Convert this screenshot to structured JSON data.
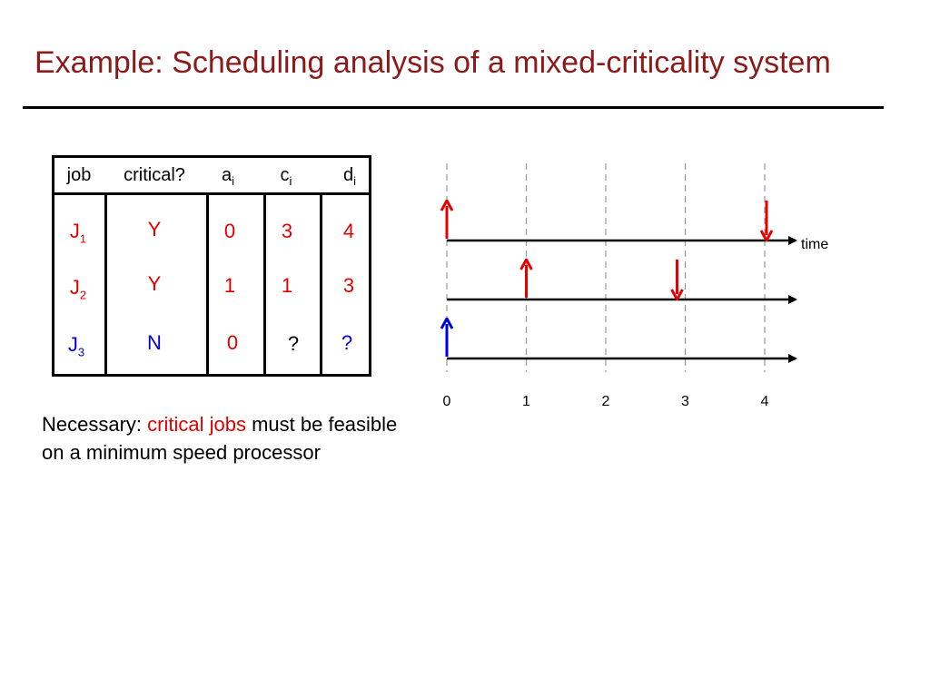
{
  "slide": {
    "title": "Example: Scheduling analysis of a mixed-criticality system"
  },
  "table": {
    "headers": {
      "job": "job",
      "critical": "critical?",
      "a": "a",
      "a_sub": "i",
      "c": "c",
      "c_sub": "i",
      "d": "d",
      "d_sub": "i"
    },
    "rows": [
      {
        "job": "J",
        "job_sub": "1",
        "critical": "Y",
        "a": "0",
        "c": "3",
        "d": "4"
      },
      {
        "job": "J",
        "job_sub": "2",
        "critical": "Y",
        "a": "1",
        "c": "1",
        "d": "3"
      },
      {
        "job": "J",
        "job_sub": "3",
        "critical": "N",
        "a": "0",
        "c": "?",
        "d": "?"
      }
    ]
  },
  "timeline": {
    "axis_label": "time",
    "ticks": [
      "0",
      "1",
      "2",
      "3",
      "4"
    ],
    "jobs": [
      {
        "release": 0,
        "deadline": 4,
        "color": "#e60000"
      },
      {
        "release": 1,
        "deadline": 3,
        "color": "#e60000"
      },
      {
        "release": 0,
        "deadline": null,
        "color": "#0000d8"
      }
    ]
  },
  "note": {
    "prefix": "Necessary:  ",
    "highlight": "critical jobs",
    "suffix": " must be feasible on a minimum speed processor"
  },
  "colors": {
    "title": "#8b1a1a",
    "critical": "#e60000",
    "noncritical": "#0000d8"
  }
}
